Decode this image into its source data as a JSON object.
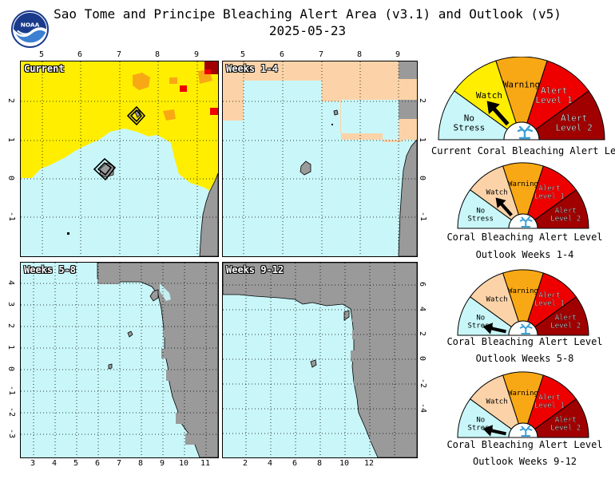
{
  "header": {
    "title_line1": "Sao Tome and Principe Bleaching Alert Area (v3.1) and Outlook (v5)",
    "title_line2": "2025-05-23",
    "logo_text": "NOAA"
  },
  "colors": {
    "no_stress": "#c9f7f9",
    "watch_current": "#ffee00",
    "watch_outlook": "#fcd3a8",
    "warning": "#f9a815",
    "alert_level_1": "#ee0000",
    "alert_level_2": "#a00000",
    "land": "#9a9a9a",
    "coast": "#000000",
    "grid": "#000000"
  },
  "panels": [
    {
      "label": "Current",
      "x_ticks": [
        "5",
        "6",
        "7",
        "8",
        "9"
      ],
      "x_ticks_position": "top",
      "y_ticks": [
        "2",
        "1",
        "0",
        "-1"
      ],
      "y_ticks_position": "left"
    },
    {
      "label": "Weeks 1-4",
      "x_ticks": [
        "5",
        "6",
        "7",
        "8",
        "9"
      ],
      "x_ticks_position": "top",
      "y_ticks": [
        "2",
        "1",
        "0",
        "-1"
      ],
      "y_ticks_position": "right"
    },
    {
      "label": "Weeks 5-8",
      "x_ticks": [
        "3",
        "4",
        "5",
        "6",
        "7",
        "8",
        "9",
        "10",
        "11"
      ],
      "x_ticks_position": "bottom",
      "y_ticks": [
        "4",
        "3",
        "2",
        "1",
        "0",
        "-1",
        "-2",
        "-3"
      ],
      "y_ticks_position": "left"
    },
    {
      "label": "Weeks 9-12",
      "x_ticks": [
        "2",
        "4",
        "6",
        "8",
        "10",
        "12"
      ],
      "x_ticks_position": "bottom",
      "y_ticks": [
        "6",
        "4",
        "2",
        "0",
        "-2",
        "-4"
      ],
      "y_ticks_position": "right"
    }
  ],
  "gauges": [
    {
      "caption_line1": "Current Coral Bleaching Alert Level",
      "caption_line2": "",
      "level": "Watch",
      "labels": {
        "no_stress": "No Stress",
        "watch": "Watch",
        "warning": "Warning",
        "alert1": "Alert Level 1",
        "alert2": "Alert Level 2"
      }
    },
    {
      "caption_line1": "Coral Bleaching Alert Level",
      "caption_line2": "Outlook Weeks 1-4",
      "level": "Watch",
      "labels": {
        "no_stress": "No Stress",
        "watch": "Watch",
        "warning": "Warning",
        "alert1": "Alert Level 1",
        "alert2": "Alert Level 2"
      }
    },
    {
      "caption_line1": "Coral Bleaching Alert Level",
      "caption_line2": "Outlook Weeks 5-8",
      "level": "No Stress",
      "labels": {
        "no_stress": "No Stress",
        "watch": "Watch",
        "warning": "Warning",
        "alert1": "Alert Level 1",
        "alert2": "Alert Level 2"
      }
    },
    {
      "caption_line1": "Coral Bleaching Alert Level",
      "caption_line2": "Outlook Weeks 9-12",
      "level": "No Stress",
      "labels": {
        "no_stress": "No Stress",
        "watch": "Watch",
        "warning": "Warning",
        "alert1": "Alert Level 1",
        "alert2": "Alert Level 2"
      }
    }
  ]
}
